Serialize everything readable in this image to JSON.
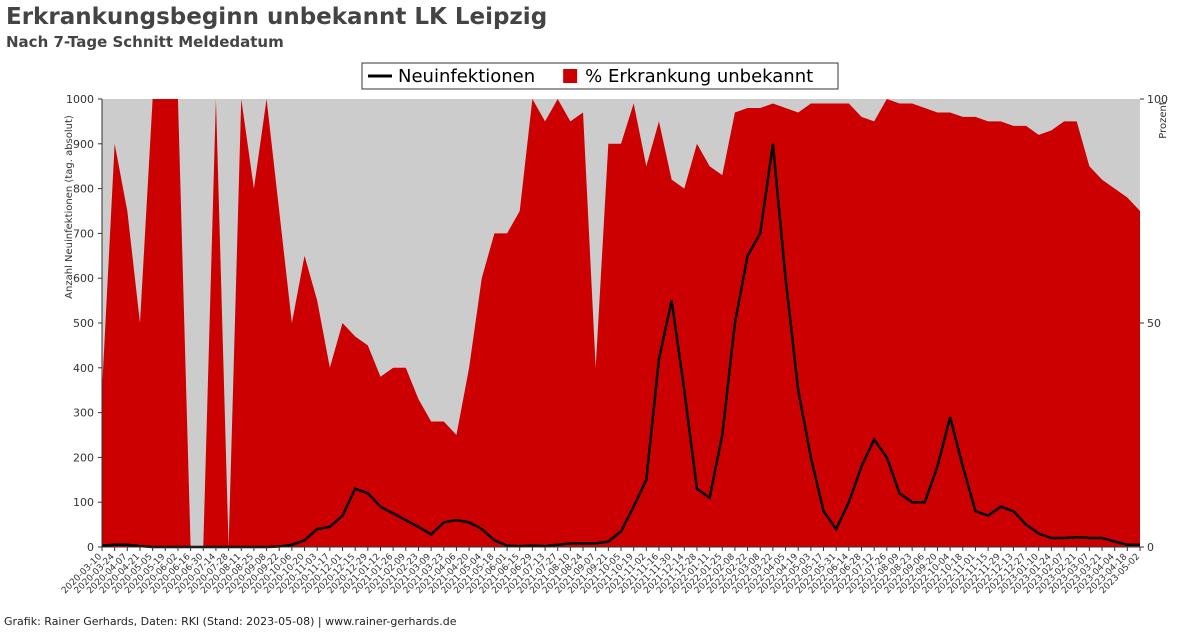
{
  "chart_data": {
    "type": "line-area",
    "title": "Erkrankungsbeginn unbekannt LK Leipzig",
    "subtitle": "Nach 7-Tage Schnitt Meldedatum",
    "source": "Grafik: Rainer Gerhards, Daten: RKI (Stand: 2023-05-08) | www.rainer-gerhards.de",
    "ylabel": "Anzahl Neuinfektionen (tag. absolut)",
    "y2label": "Prozent",
    "x": [
      "2020-03-10",
      "2020-03-24",
      "2020-04-07",
      "2020-04-21",
      "2020-05-05",
      "2020-05-19",
      "2020-06-02",
      "2020-06-16",
      "2020-06-30",
      "2020-07-14",
      "2020-07-28",
      "2020-08-11",
      "2020-08-25",
      "2020-09-08",
      "2020-09-22",
      "2020-10-06",
      "2020-10-20",
      "2020-11-03",
      "2020-11-17",
      "2020-12-01",
      "2020-12-15",
      "2020-12-29",
      "2021-01-12",
      "2021-01-26",
      "2021-02-09",
      "2021-02-23",
      "2021-03-09",
      "2021-03-23",
      "2021-04-06",
      "2021-04-20",
      "2021-05-04",
      "2021-05-18",
      "2021-06-01",
      "2021-06-15",
      "2021-06-29",
      "2021-07-13",
      "2021-07-27",
      "2021-08-10",
      "2021-08-24",
      "2021-09-07",
      "2021-09-21",
      "2021-10-05",
      "2021-10-19",
      "2021-11-02",
      "2021-11-16",
      "2021-11-30",
      "2021-12-14",
      "2021-12-28",
      "2022-01-11",
      "2022-01-25",
      "2022-02-08",
      "2022-02-22",
      "2022-03-08",
      "2022-03-22",
      "2022-04-05",
      "2022-04-19",
      "2022-05-03",
      "2022-05-17",
      "2022-05-31",
      "2022-06-14",
      "2022-06-28",
      "2022-07-12",
      "2022-07-26",
      "2022-08-09",
      "2022-08-23",
      "2022-09-06",
      "2022-09-20",
      "2022-10-04",
      "2022-10-18",
      "2022-11-01",
      "2022-11-15",
      "2022-11-29",
      "2022-12-13",
      "2022-12-27",
      "2023-01-10",
      "2023-01-24",
      "2023-02-07",
      "2023-02-21",
      "2023-03-07",
      "2023-03-21",
      "2023-04-04",
      "2023-04-18",
      "2023-05-02"
    ],
    "series": [
      {
        "name": "Neuinfektionen",
        "color": "#000000",
        "values": [
          3,
          5,
          5,
          2,
          0,
          0,
          0,
          0,
          0,
          0,
          0,
          0,
          0,
          0,
          1,
          5,
          15,
          40,
          45,
          70,
          130,
          120,
          90,
          75,
          60,
          45,
          28,
          55,
          60,
          55,
          40,
          15,
          3,
          2,
          3,
          2,
          5,
          8,
          8,
          8,
          12,
          35,
          90,
          150,
          420,
          550,
          350,
          130,
          110,
          250,
          500,
          650,
          700,
          900,
          600,
          350,
          200,
          80,
          40,
          100,
          180,
          240,
          200,
          120,
          100,
          100,
          180,
          290,
          180,
          80,
          70,
          90,
          80,
          50,
          30,
          20,
          20,
          22,
          20,
          20,
          12,
          5,
          5
        ]
      },
      {
        "name": "% Erkrankung unbekannt",
        "color": "#cc0000",
        "axis": "y2",
        "values": [
          35,
          90,
          75,
          50,
          100,
          100,
          100,
          0,
          0,
          100,
          0,
          100,
          80,
          100,
          75,
          50,
          65,
          55,
          40,
          50,
          47,
          45,
          38,
          40,
          40,
          33,
          28,
          28,
          25,
          40,
          60,
          70,
          70,
          75,
          100,
          95,
          100,
          95,
          97,
          40,
          90,
          90,
          99,
          85,
          95,
          82,
          80,
          90,
          85,
          83,
          97,
          98,
          98,
          99,
          98,
          97,
          99,
          99,
          99,
          99,
          96,
          95,
          100,
          99,
          99,
          98,
          97,
          97,
          96,
          96,
          95,
          95,
          94,
          94,
          92,
          93,
          95,
          95,
          85,
          82,
          80,
          78,
          75
        ]
      }
    ],
    "ylim": [
      0,
      1000
    ],
    "yticks": [
      0,
      100,
      200,
      300,
      400,
      500,
      600,
      700,
      800,
      900,
      1000
    ],
    "y2lim": [
      0,
      100
    ],
    "y2ticks": [
      0,
      50,
      100
    ],
    "background": "#cccccc",
    "legend": "top"
  }
}
